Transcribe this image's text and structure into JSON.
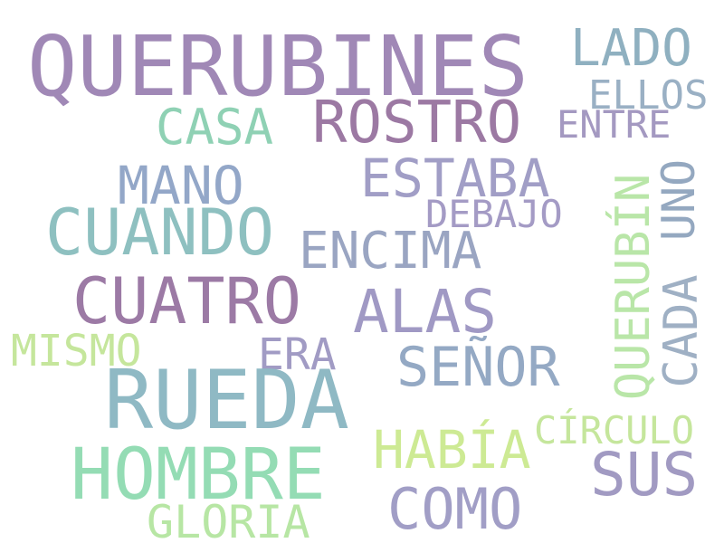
{
  "words": [
    {
      "key": "querubines",
      "text": "QUERUBINES",
      "color": "#a088b6"
    },
    {
      "key": "lado",
      "text": "LADO",
      "color": "#8fb0c0"
    },
    {
      "key": "ellos",
      "text": "ELLOS",
      "color": "#9ab0c4"
    },
    {
      "key": "rostro",
      "text": "ROSTRO",
      "color": "#9c79a3"
    },
    {
      "key": "casa",
      "text": "CASA",
      "color": "#8fd1b4"
    },
    {
      "key": "entre",
      "text": "ENTRE",
      "color": "#a499c1"
    },
    {
      "key": "mano",
      "text": "MANO",
      "color": "#93a7c8"
    },
    {
      "key": "estaba",
      "text": "ESTABA",
      "color": "#a19ec6"
    },
    {
      "key": "debajo",
      "text": "DEBAJO",
      "color": "#a49bc5"
    },
    {
      "key": "cuando",
      "text": "CUANDO",
      "color": "#8ec0c0"
    },
    {
      "key": "encima",
      "text": "ENCIMA",
      "color": "#9aa5c2"
    },
    {
      "key": "cuatro",
      "text": "CUATRO",
      "color": "#9c7aa5"
    },
    {
      "key": "alas",
      "text": "ALAS",
      "color": "#a099c4"
    },
    {
      "key": "mismo",
      "text": "MISMO",
      "color": "#c5e69c"
    },
    {
      "key": "era",
      "text": "ERA",
      "color": "#a19bc4"
    },
    {
      "key": "senor",
      "text": "SEÑOR",
      "color": "#94a9c4"
    },
    {
      "key": "rueda",
      "text": "RUEDA",
      "color": "#8fb9c4"
    },
    {
      "key": "circulo",
      "text": "CÍRCULO",
      "color": "#c5e69c"
    },
    {
      "key": "habia",
      "text": "HABÍA",
      "color": "#cdea94"
    },
    {
      "key": "hombre",
      "text": "HOMBRE",
      "color": "#94dcb4"
    },
    {
      "key": "sus",
      "text": "SUS",
      "color": "#a19ac2"
    },
    {
      "key": "como",
      "text": "COMO",
      "color": "#a19ec6"
    },
    {
      "key": "gloria",
      "text": "GLORIA",
      "color": "#b7e6a4"
    },
    {
      "key": "querubin",
      "text": "QUERUBÍN",
      "color": "#b9e6a8"
    },
    {
      "key": "uno",
      "text": "UNO",
      "color": "#94a8c0"
    },
    {
      "key": "cada",
      "text": "CADA",
      "color": "#9fb0c4"
    }
  ]
}
